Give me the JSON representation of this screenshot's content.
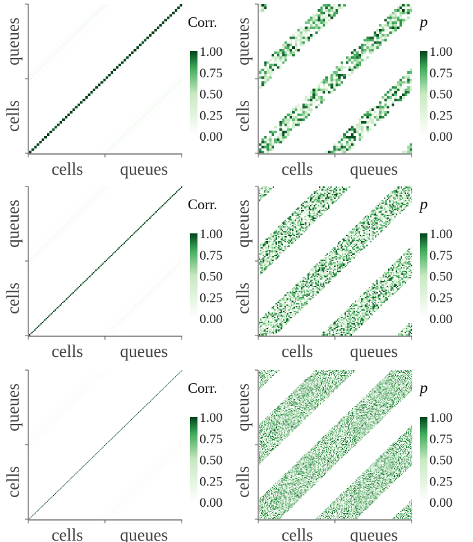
{
  "figure": {
    "x_labels": [
      "cells",
      "queues"
    ],
    "y_labels": [
      "cells",
      "queues"
    ]
  },
  "colors": {
    "max": "#00441b",
    "min": "#ffffff",
    "axis": "#555555"
  },
  "chart_data": [
    {
      "type": "heatmap",
      "row": 1,
      "panel": "correlation",
      "grid_size": 60,
      "colorbar_title": "Corr.",
      "colorbar_ticks": [
        "1.00",
        "0.75",
        "0.50",
        "0.25",
        "0.00"
      ],
      "clim": [
        0,
        1
      ],
      "xticks": [
        "cells",
        "queues"
      ],
      "yticks": [
        "cells",
        "queues"
      ],
      "diagonal_value": 1.0,
      "offdiagonal_band_value": 0.08
    },
    {
      "type": "heatmap",
      "row": 1,
      "panel": "p",
      "grid_size": 60,
      "colorbar_title": "p",
      "colorbar_ticks": [
        "1.00",
        "0.75",
        "0.50",
        "0.25",
        "0.00"
      ],
      "clim": [
        0,
        1
      ],
      "xticks": [
        "cells",
        "queues"
      ],
      "yticks": [
        "cells",
        "queues"
      ],
      "band_half_width_fraction": 0.13
    },
    {
      "type": "heatmap",
      "row": 2,
      "panel": "correlation",
      "grid_size": 120,
      "colorbar_title": "Corr.",
      "colorbar_ticks": [
        "1.00",
        "0.75",
        "0.50",
        "0.25",
        "0.00"
      ],
      "clim": [
        0,
        1
      ],
      "xticks": [
        "cells",
        "queues"
      ],
      "yticks": [
        "cells",
        "queues"
      ],
      "diagonal_value": 1.0,
      "offdiagonal_band_value": 0.06
    },
    {
      "type": "heatmap",
      "row": 2,
      "panel": "p",
      "grid_size": 120,
      "colorbar_title": "p",
      "colorbar_ticks": [
        "1.00",
        "0.75",
        "0.50",
        "0.25",
        "0.00"
      ],
      "clim": [
        0,
        1
      ],
      "xticks": [
        "cells",
        "queues"
      ],
      "yticks": [
        "cells",
        "queues"
      ],
      "band_half_width_fraction": 0.19
    },
    {
      "type": "heatmap",
      "row": 3,
      "panel": "correlation",
      "grid_size": 240,
      "colorbar_title": "Corr.",
      "colorbar_ticks": [
        "1.00",
        "0.75",
        "0.50",
        "0.25",
        "0.00"
      ],
      "clim": [
        0,
        1
      ],
      "xticks": [
        "cells",
        "queues"
      ],
      "yticks": [
        "cells",
        "queues"
      ],
      "diagonal_value": 1.0,
      "offdiagonal_band_value": 0.04
    },
    {
      "type": "heatmap",
      "row": 3,
      "panel": "p",
      "grid_size": 220,
      "colorbar_title": "p",
      "colorbar_ticks": [
        "1.00",
        "0.75",
        "0.50",
        "0.25",
        "0.00"
      ],
      "clim": [
        0,
        1
      ],
      "xticks": [
        "cells",
        "queues"
      ],
      "yticks": [
        "cells",
        "queues"
      ],
      "band_half_width_fraction": 0.24
    }
  ]
}
